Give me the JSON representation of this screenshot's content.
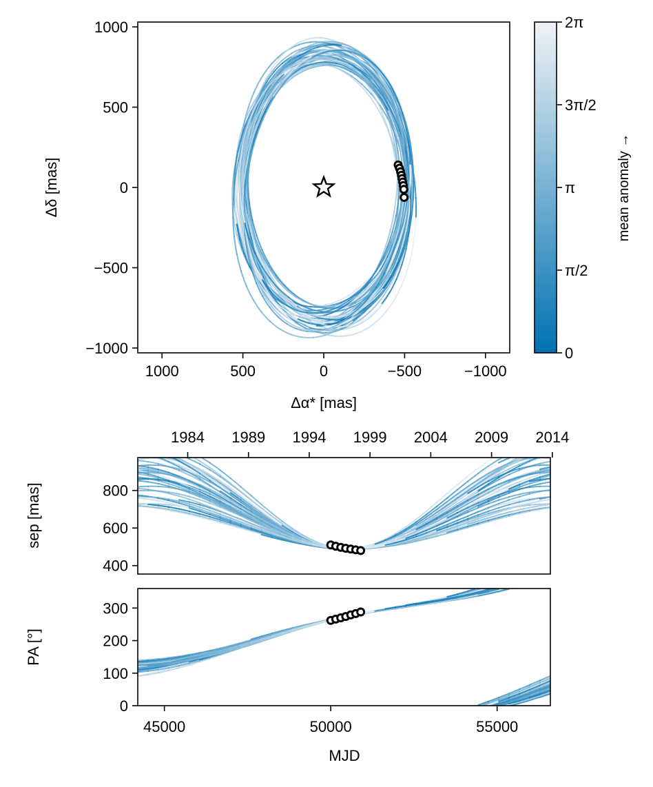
{
  "figure": {
    "colors": {
      "accent": "#0072b2",
      "light": "#f0f2f5",
      "marker_edge": "#000000"
    }
  },
  "chart_data": [
    {
      "type": "line",
      "panel": "astrometry",
      "xlabel": "Δα* [mas]",
      "ylabel": "Δδ [mas]",
      "xlim": [
        1150,
        -1150
      ],
      "ylim": [
        -1030,
        1030
      ],
      "x_ticks": [
        1000,
        500,
        0,
        -500,
        -1000
      ],
      "x_tick_labels": [
        "1000",
        "500",
        "0",
        "−500",
        "−1000"
      ],
      "y_ticks": [
        -1000,
        -500,
        0,
        500,
        1000
      ],
      "y_tick_labels": [
        "−1000",
        "−500",
        "0",
        "500",
        "1000"
      ],
      "host_marker": {
        "symbol": "star",
        "x": 0,
        "y": 0
      },
      "observations": {
        "x": [
          -460,
          -468,
          -475,
          -480,
          -484,
          -488,
          -492,
          -495,
          -497
        ],
        "y": [
          140,
          120,
          98,
          76,
          55,
          34,
          12,
          -12,
          -62
        ]
      },
      "orbit_family": {
        "count": 40,
        "center_x": [
          -30,
          30
        ],
        "center_y": [
          -30,
          30
        ],
        "semi_axis_x": [
          470,
          540
        ],
        "semi_axis_y": [
          760,
          930
        ],
        "rotation_deg": [
          -8,
          8
        ],
        "passes_through": {
          "x": -480,
          "y": 40
        }
      },
      "grid": false
    },
    {
      "type": "line",
      "panel": "separation",
      "ylabel": "sep [mas]",
      "xlim": [
        44200,
        56600
      ],
      "ylim": [
        355,
        975
      ],
      "y_ticks": [
        400,
        600,
        800
      ],
      "y_tick_labels": [
        "400",
        "600",
        "800"
      ],
      "top_axis_ticks_year": [
        1984,
        1989,
        1994,
        1999,
        2004,
        2009,
        2014
      ],
      "top_axis_tick_labels": [
        "1984",
        "1989",
        "1994",
        "1999",
        "2004",
        "2009",
        "2014"
      ],
      "observations": {
        "mjd": [
          50000,
          50150,
          50300,
          50450,
          50600,
          50750,
          50900
        ],
        "sep": [
          510,
          503,
          497,
          492,
          488,
          484,
          480
        ]
      },
      "grid": false
    },
    {
      "type": "line",
      "panel": "position-angle",
      "xlabel": "MJD",
      "ylabel": "PA [°]",
      "xlim": [
        44200,
        56600
      ],
      "ylim": [
        0,
        360
      ],
      "x_ticks": [
        45000,
        50000,
        55000
      ],
      "x_tick_labels": [
        "45000",
        "50000",
        "55000"
      ],
      "y_ticks": [
        0,
        100,
        200,
        300
      ],
      "y_tick_labels": [
        "0",
        "100",
        "200",
        "300"
      ],
      "observations": {
        "mjd": [
          50000,
          50150,
          50300,
          50450,
          50600,
          50750,
          50900
        ],
        "pa": [
          262,
          266,
          270,
          274,
          279,
          283,
          288
        ]
      },
      "grid": false
    },
    {
      "type": "colorbar",
      "panel": "colorbar",
      "label": "mean anomaly →",
      "range": [
        0,
        6.2832
      ],
      "ticks": [
        0,
        1.5708,
        3.1416,
        4.7124,
        6.2832
      ],
      "tick_labels": [
        "0",
        "π/2",
        "π",
        "3π/2",
        "2π"
      ],
      "colormap": [
        "#0072b2",
        "#f0f2f5"
      ]
    }
  ]
}
